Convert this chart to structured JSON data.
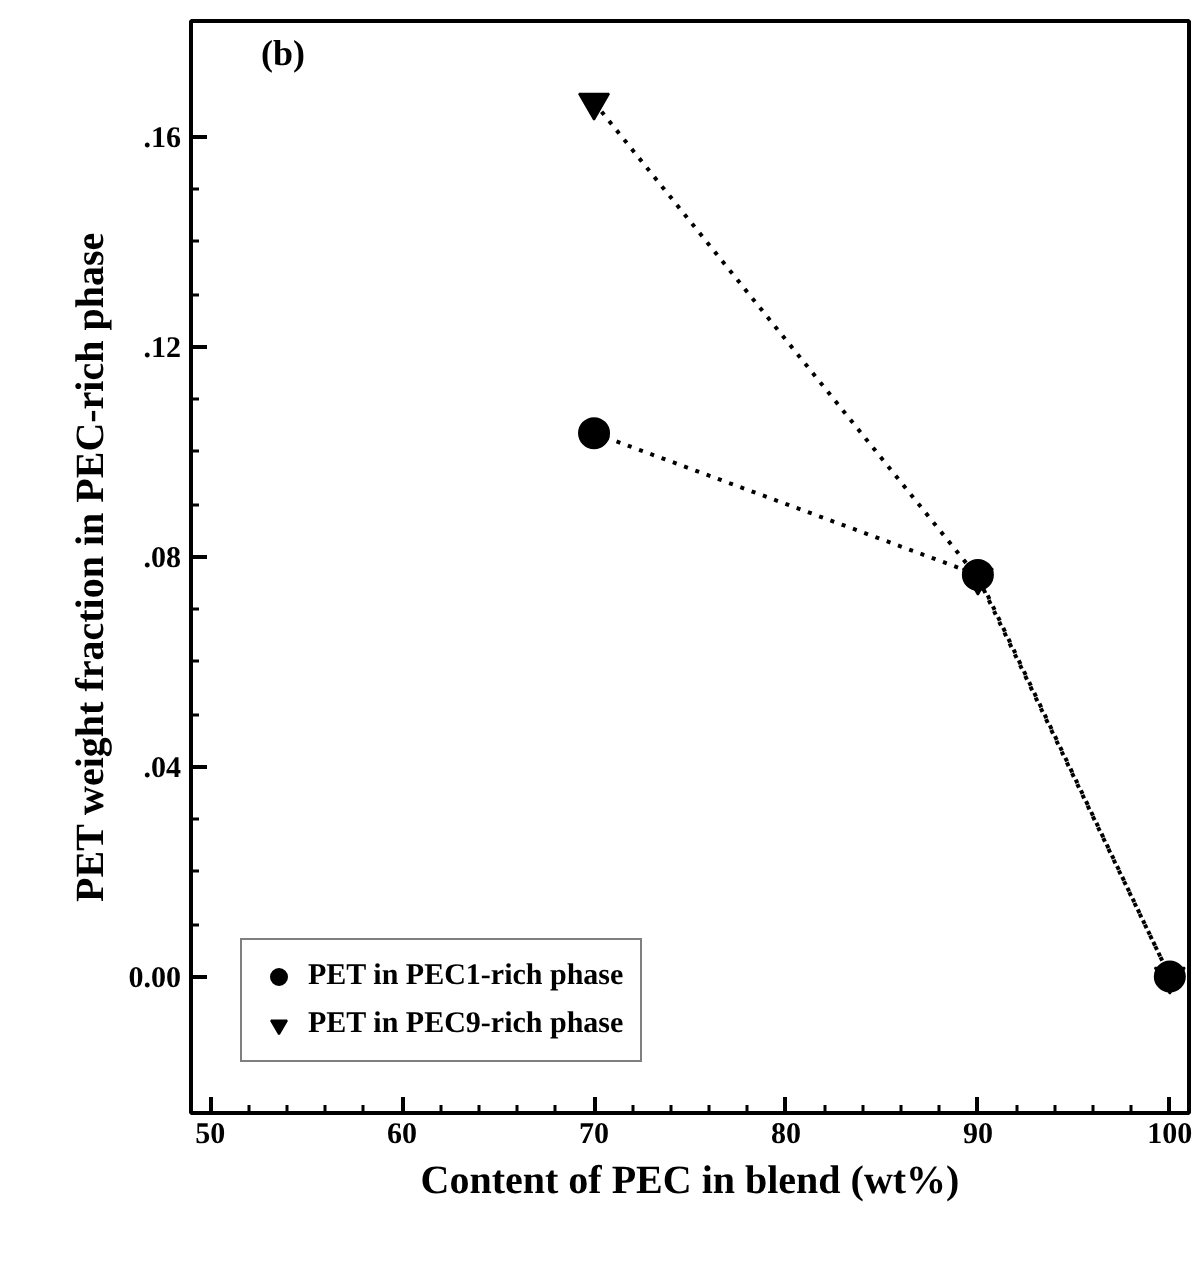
{
  "chart_data": {
    "type": "line",
    "xlabel": "Content of PEC in blend (wt%)",
    "ylabel": "PET weight fraction in PEC-rich phase",
    "annotations": [
      "(b)"
    ],
    "x": [
      70,
      90,
      100
    ],
    "series": [
      {
        "name": "PET in PEC1-rich phase",
        "color": "#000000",
        "marker": "circle",
        "values": [
          0.1035,
          0.0765,
          0.0
        ]
      },
      {
        "name": "PET in PEC9-rich phase",
        "color": "#000000",
        "marker": "triangle",
        "values": [
          0.1665,
          0.076,
          0.0
        ]
      }
    ],
    "line_style": "dotted",
    "legend": "bottom left",
    "xlim": [
      49,
      101
    ],
    "xticks": [
      50,
      60,
      70,
      80,
      90,
      100
    ],
    "ylim": [
      -0.026,
      0.182
    ],
    "yticks": [
      {
        "value": 0,
        "label": "0.00"
      },
      {
        "value": 0.04,
        "label": ".04"
      },
      {
        "value": 0.08,
        "label": ".08"
      },
      {
        "value": 0.12,
        "label": ".12"
      },
      {
        "value": 0.16,
        "label": ".16"
      }
    ]
  }
}
